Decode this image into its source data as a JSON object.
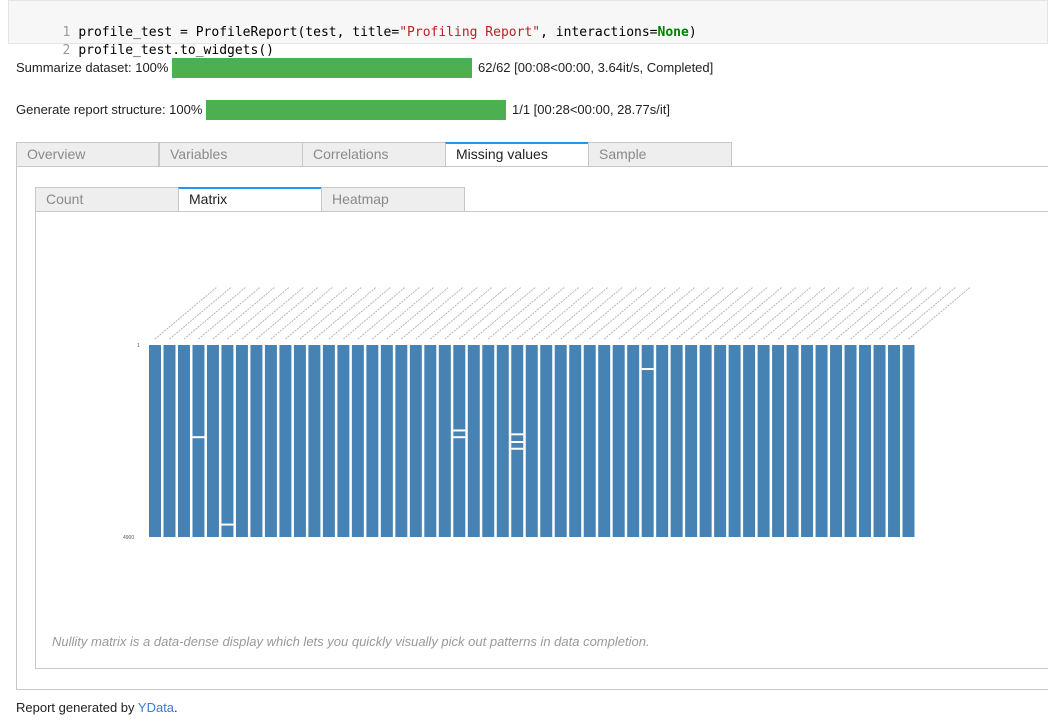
{
  "code": {
    "line_numbers": [
      "1",
      "2"
    ],
    "line1": {
      "a": "profile_test = ProfileReport(test, title=",
      "b": "\"Profiling Report\"",
      "c": ", interactions=",
      "d": "None",
      "e": ")"
    },
    "line2": "profile_test.to_widgets()"
  },
  "progress": [
    {
      "label": "Summarize dataset: 100%",
      "percent": 100,
      "status": "62/62 [00:08<00:00, 3.64it/s, Completed]"
    },
    {
      "label": "Generate report structure: 100%",
      "percent": 100,
      "status": "1/1 [00:28<00:00, 28.77s/it]"
    }
  ],
  "tabs": [
    "Overview",
    "Variables",
    "Correlations",
    "Missing values",
    "Sample"
  ],
  "active_tab": "Missing values",
  "subtabs": [
    "Count",
    "Matrix",
    "Heatmap"
  ],
  "active_subtab": "Matrix",
  "matrix": {
    "row_start_label": "1",
    "row_end_label": "4900",
    "column_count": 53,
    "bar_color": "#4682b4",
    "missing_marks": [
      {
        "column": 3,
        "rows": [
          0.475
        ]
      },
      {
        "column": 5,
        "rows": [
          0.93
        ]
      },
      {
        "column": 21,
        "rows": [
          0.44,
          0.475
        ]
      },
      {
        "column": 25,
        "rows": [
          0.46,
          0.5,
          0.535
        ]
      },
      {
        "column": 34,
        "rows": [
          0.12
        ]
      }
    ]
  },
  "caption": "Nullity matrix is a data-dense display which lets you quickly visually pick out patterns in data completion.",
  "footer": {
    "prefix": "Report generated by ",
    "link": "YData",
    "suffix": "."
  }
}
